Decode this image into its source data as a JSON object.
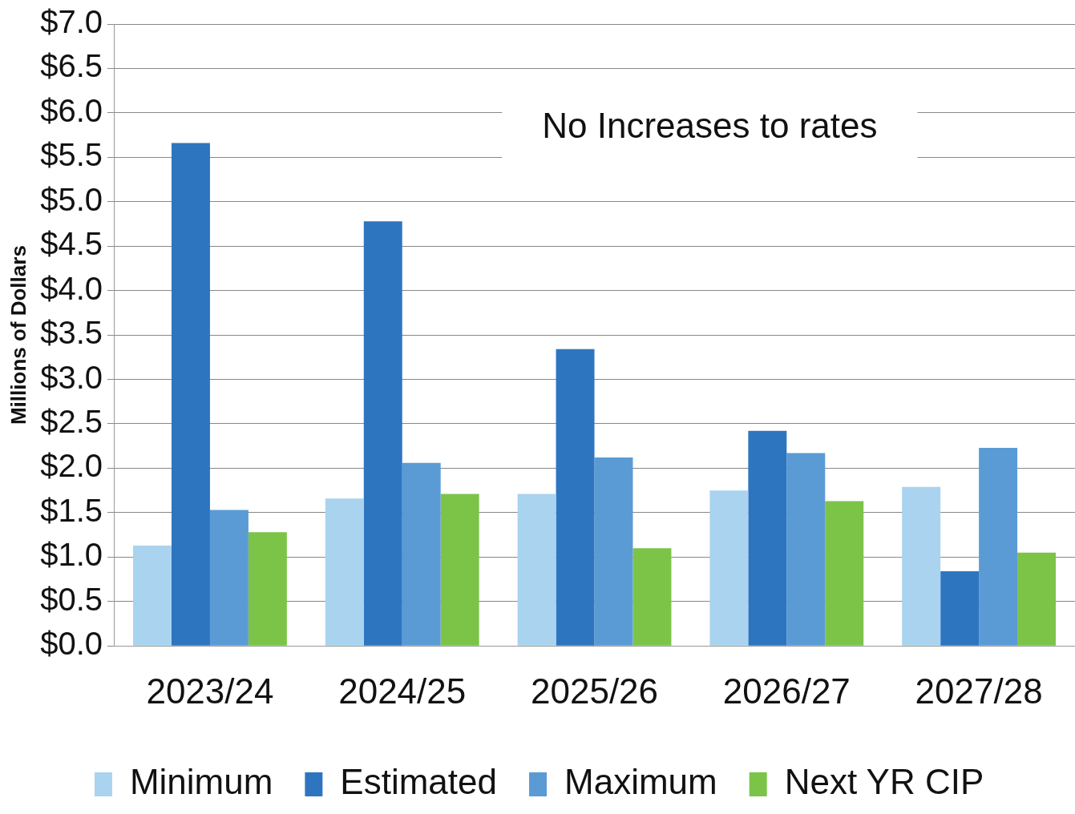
{
  "chart_data": {
    "type": "bar",
    "ylabel": "Millions of Dollars",
    "categories": [
      "2023/24",
      "2024/25",
      "2025/26",
      "2026/27",
      "2027/28"
    ],
    "series": [
      {
        "name": "Minimum",
        "color": "#a9d3ee",
        "values": [
          1.13,
          1.66,
          1.71,
          1.75,
          1.79
        ]
      },
      {
        "name": "Estimated",
        "color": "#2e75c0",
        "values": [
          5.66,
          4.78,
          3.34,
          2.42,
          0.84
        ]
      },
      {
        "name": "Maximum",
        "color": "#5b9bd5",
        "values": [
          1.53,
          2.06,
          2.12,
          2.17,
          2.23
        ]
      },
      {
        "name": "Next YR CIP",
        "color": "#7cc448",
        "values": [
          1.28,
          1.71,
          1.1,
          1.63,
          1.05
        ]
      }
    ],
    "ylim": [
      0,
      7
    ],
    "yticks": [
      {
        "value": 0,
        "label": "$0.0"
      },
      {
        "value": 0.5,
        "label": "$0.5"
      },
      {
        "value": 1,
        "label": "$1.0"
      },
      {
        "value": 1.5,
        "label": "$1.5"
      },
      {
        "value": 2,
        "label": "$2.0"
      },
      {
        "value": 2.5,
        "label": "$2.5"
      },
      {
        "value": 3,
        "label": "$3.0"
      },
      {
        "value": 3.5,
        "label": "$3.5"
      },
      {
        "value": 4,
        "label": "$4.0"
      },
      {
        "value": 4.5,
        "label": "$4.5"
      },
      {
        "value": 5,
        "label": "$5.0"
      },
      {
        "value": 5.5,
        "label": "$5.5"
      },
      {
        "value": 6,
        "label": "$6.0"
      },
      {
        "value": 6.5,
        "label": "$6.5"
      },
      {
        "value": 7,
        "label": "$7.0"
      }
    ],
    "grid": "y",
    "legend": "bottom",
    "annotations": [
      "No Increases to rates"
    ]
  }
}
